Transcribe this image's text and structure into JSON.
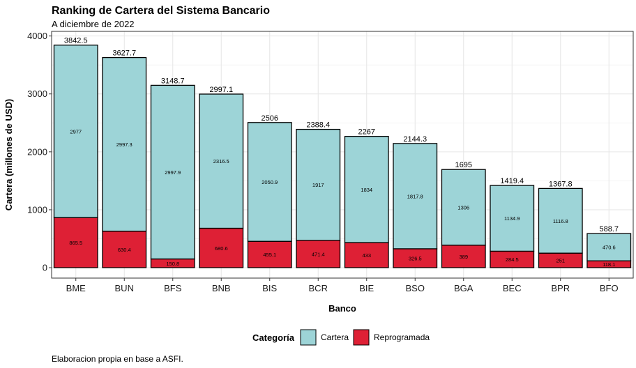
{
  "chart_data": {
    "type": "bar",
    "stacked": true,
    "title": "Ranking de Cartera del Sistema Bancario",
    "subtitle": "A diciembre de 2022",
    "xlabel": "Banco",
    "ylabel": "Cartera (millones de USD)",
    "caption": "Elaboracion propia en base a ASFI.",
    "ylim": [
      -180,
      4080
    ],
    "yticks": [
      0,
      1000,
      2000,
      3000,
      4000
    ],
    "grid": true,
    "legend": {
      "position": "bottom",
      "title": "Categoría",
      "entries": [
        "Cartera",
        "Reprogramada"
      ]
    },
    "colors": {
      "Cartera": "#9dd4d7",
      "Reprogramada": "#de2035"
    },
    "categories": [
      "BME",
      "BUN",
      "BFS",
      "BNB",
      "BIS",
      "BCR",
      "BIE",
      "BSO",
      "BGA",
      "BEC",
      "BPR",
      "BFO"
    ],
    "totals": [
      "3842.5",
      "3627.7",
      "3148.7",
      "2997.1",
      "2506",
      "2388.4",
      "2267",
      "2144.3",
      "1695",
      "1419.4",
      "1367.8",
      "588.7"
    ],
    "series": [
      {
        "name": "Reprogramada",
        "values": [
          865.5,
          630.4,
          150.8,
          680.6,
          455.1,
          471.4,
          433,
          326.5,
          389,
          284.5,
          251,
          118.1
        ],
        "labels": [
          "865.5",
          "630.4",
          "150.8",
          "680.6",
          "455.1",
          "471.4",
          "433",
          "326.5",
          "389",
          "284.5",
          "251",
          "118.1"
        ]
      },
      {
        "name": "Cartera",
        "values": [
          2977,
          2997.3,
          2997.9,
          2316.5,
          2050.9,
          1917,
          1834,
          1817.8,
          1306,
          1134.9,
          1116.8,
          470.6
        ],
        "labels": [
          "2977",
          "2997.3",
          "2997.9",
          "2316.5",
          "2050.9",
          "1917",
          "1834",
          "1817.8",
          "1306",
          "1134.9",
          "1116.8",
          "470.6"
        ]
      }
    ]
  }
}
